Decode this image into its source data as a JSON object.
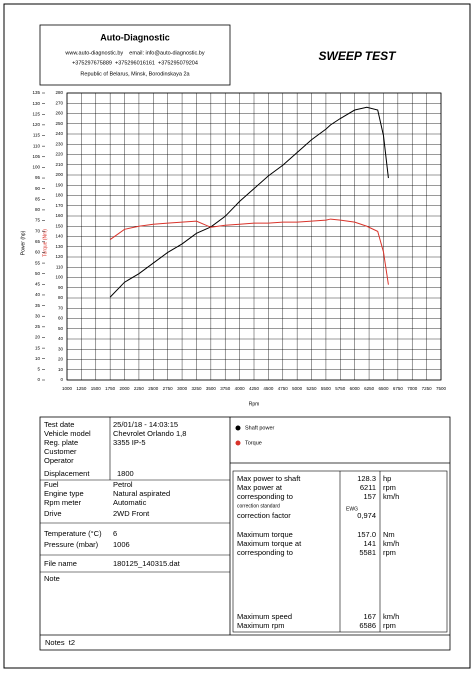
{
  "header": {
    "company": "Auto-Diagnostic",
    "contacts": "www.auto-diagnostic.by    email: info@auto-diagnostic.by",
    "phones": "+375297675889  +375296016161  +375295079204",
    "address": "Republic of Belarus, Minsk, Borodinskaya 2a",
    "title": "SWEEP TEST"
  },
  "chart_data": {
    "type": "line",
    "xlabel": "Rpm",
    "ylabel": "Power (hp)",
    "y2label": "Torque (Nm)",
    "x": [
      1750,
      2000,
      2250,
      2500,
      2750,
      3000,
      3250,
      3500,
      3750,
      4000,
      4250,
      4500,
      4750,
      5000,
      5250,
      5500,
      5581,
      5750,
      6000,
      6211,
      6400,
      6500,
      6586
    ],
    "series": [
      {
        "name": "Shaft power",
        "color": "#000000",
        "values": [
          39,
          46,
          50,
          55,
          60,
          64,
          69,
          72,
          77,
          84,
          90,
          96,
          101,
          107,
          113,
          118,
          120,
          123,
          127,
          128.3,
          127,
          115,
          95
        ]
      },
      {
        "name": "Torque",
        "color": "#d9342b",
        "axis": "y2",
        "values": [
          137,
          147,
          150,
          152,
          153,
          154,
          155,
          149,
          151,
          152,
          153,
          153,
          154,
          154,
          155,
          156,
          157,
          156,
          154,
          150,
          145,
          125,
          93
        ]
      }
    ],
    "xlim": [
      1000,
      7500
    ],
    "xticks": [
      1000,
      1250,
      1500,
      1750,
      2000,
      2250,
      2500,
      2750,
      3000,
      3250,
      3500,
      3750,
      4000,
      4250,
      4500,
      4750,
      5000,
      5250,
      5500,
      5750,
      6000,
      6250,
      6500,
      6750,
      7000,
      7250,
      7500
    ],
    "ylim": [
      0,
      135
    ],
    "yticks": [
      0,
      5,
      10,
      15,
      20,
      25,
      30,
      35,
      40,
      45,
      50,
      55,
      60,
      65,
      70,
      75,
      80,
      85,
      90,
      95,
      100,
      105,
      110,
      115,
      120,
      125,
      130,
      135
    ],
    "y2lim": [
      0,
      280
    ],
    "y2ticks": [
      0,
      10,
      20,
      30,
      40,
      50,
      60,
      70,
      80,
      90,
      100,
      110,
      120,
      130,
      140,
      150,
      160,
      170,
      180,
      190,
      200,
      210,
      220,
      230,
      240,
      250,
      260,
      270,
      280
    ],
    "grid": true
  },
  "info": {
    "rows": [
      {
        "label": "Test date",
        "value": "25/01/18 - 14:03:15"
      },
      {
        "label": "Vehicle model",
        "value": "Chevrolet Orlando 1,8"
      },
      {
        "label": "Reg. plate",
        "value": "3355 IP-5"
      },
      {
        "label": "Customer"
      },
      {
        "label": "Operator"
      },
      {
        "label": "Displacement",
        "value": "1800"
      },
      {
        "label": "Fuel",
        "value": "Petrol"
      },
      {
        "label": "Engine type",
        "value": "Natural aspirated"
      },
      {
        "label": "Rpm meter",
        "value": "Automatic"
      },
      {
        "label": "Drive",
        "value": "2WD Front"
      },
      {
        "label": "Temperature (°C)",
        "value": "6"
      },
      {
        "label": "Pressure (mbar)",
        "value": "1006"
      },
      {
        "label": "File name",
        "value": "180125_140315.dat"
      },
      {
        "label": "Note"
      }
    ]
  },
  "results": {
    "rows": [
      {
        "label": "Max power to shaft",
        "value": "128.3",
        "unit": "hp"
      },
      {
        "label": "Max power at",
        "value": "6211",
        "unit": "rpm"
      },
      {
        "label": "corresponding to",
        "value": "157",
        "unit": "km/h"
      },
      {
        "label": "correction standard",
        "value": "EWG"
      },
      {
        "label": "correction factor",
        "value": "0,974"
      },
      {
        "label": "Maximum torque",
        "value": "157.0",
        "unit": "Nm"
      },
      {
        "label": "Maximum torque at",
        "value": "141",
        "unit": "km/h"
      },
      {
        "label": "corresponding to",
        "value": "5581",
        "unit": "rpm"
      },
      {
        "label": "Maximum speed",
        "value": "167",
        "unit": "km/h"
      },
      {
        "label": "Maximum rpm",
        "value": "6586",
        "unit": "rpm"
      }
    ]
  },
  "notes": "Notes  t2"
}
